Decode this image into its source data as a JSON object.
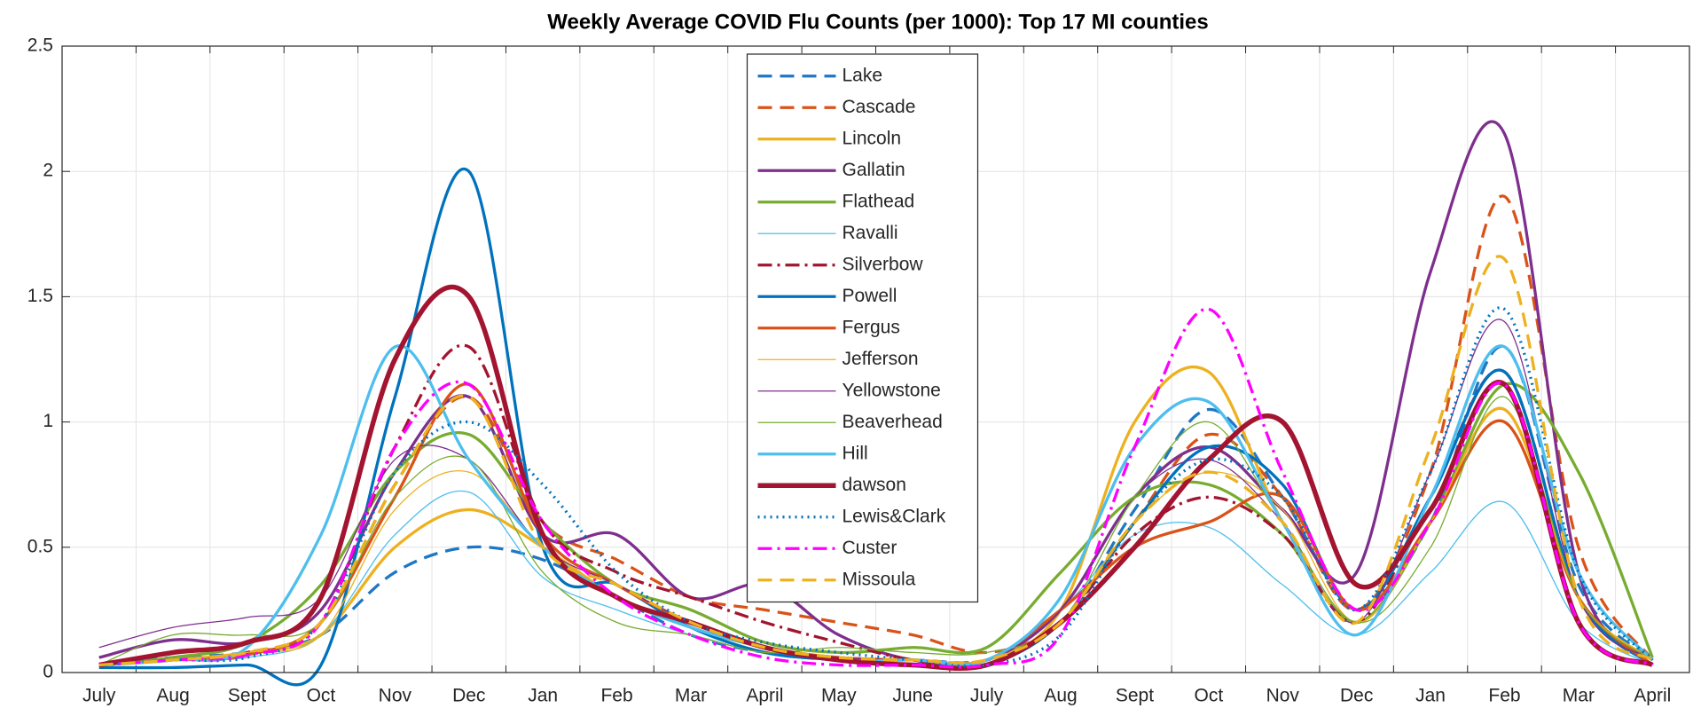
{
  "chart_data": {
    "type": "line",
    "title": "Weekly Average COVID Flu Counts (per 1000): Top 17 MI counties",
    "categories": [
      "July",
      "Aug",
      "Sept",
      "Oct",
      "Nov",
      "Dec",
      "Jan",
      "Feb",
      "Mar",
      "April",
      "May",
      "June",
      "July",
      "Aug",
      "Sept",
      "Oct",
      "Nov",
      "Dec",
      "Jan",
      "Feb",
      "Mar",
      "April"
    ],
    "ylim": [
      0,
      2.5
    ],
    "yticks": [
      0,
      0.5,
      1,
      1.5,
      2,
      2.5
    ],
    "grid": true,
    "legend": "top-center",
    "series": [
      {
        "name": "Lake",
        "color": "#1f77c4",
        "line_style": "dashed",
        "line_weight": "thick",
        "values": [
          0.03,
          0.06,
          0.08,
          0.15,
          0.4,
          0.5,
          0.45,
          0.3,
          0.15,
          0.08,
          0.05,
          0.05,
          0.05,
          0.2,
          0.65,
          1.05,
          0.7,
          0.25,
          0.6,
          1.3,
          0.35,
          0.05
        ]
      },
      {
        "name": "Cascade",
        "color": "#d95319",
        "line_style": "dashed",
        "line_weight": "thick",
        "values": [
          0.03,
          0.05,
          0.08,
          0.2,
          0.75,
          1.1,
          0.6,
          0.45,
          0.3,
          0.25,
          0.2,
          0.15,
          0.08,
          0.2,
          0.6,
          0.95,
          0.7,
          0.25,
          0.8,
          1.9,
          0.5,
          0.05
        ]
      },
      {
        "name": "Lincoln",
        "color": "#edb120",
        "line_style": "solid",
        "line_weight": "thick",
        "values": [
          0.03,
          0.05,
          0.08,
          0.15,
          0.5,
          0.65,
          0.5,
          0.3,
          0.18,
          0.1,
          0.06,
          0.05,
          0.05,
          0.25,
          1.0,
          1.2,
          0.6,
          0.2,
          0.6,
          1.05,
          0.3,
          0.05
        ]
      },
      {
        "name": "Gallatin",
        "color": "#7e2f8e",
        "line_style": "solid",
        "line_weight": "thick",
        "values": [
          0.06,
          0.13,
          0.12,
          0.25,
          0.8,
          1.1,
          0.55,
          0.55,
          0.3,
          0.35,
          0.15,
          0.05,
          0.05,
          0.25,
          0.7,
          0.9,
          0.65,
          0.4,
          1.6,
          2.15,
          0.4,
          0.05
        ]
      },
      {
        "name": "Flathead",
        "color": "#77ac30",
        "line_style": "solid",
        "line_weight": "thick",
        "values": [
          0.03,
          0.06,
          0.12,
          0.35,
          0.8,
          0.95,
          0.6,
          0.35,
          0.25,
          0.12,
          0.08,
          0.1,
          0.1,
          0.4,
          0.7,
          0.75,
          0.55,
          0.2,
          0.6,
          1.15,
          0.8,
          0.06
        ]
      },
      {
        "name": "Ravalli",
        "color": "#4dbeee",
        "line_style": "solid",
        "line_weight": "thin",
        "values": [
          0.03,
          0.05,
          0.06,
          0.15,
          0.55,
          0.72,
          0.38,
          0.25,
          0.15,
          0.08,
          0.06,
          0.05,
          0.05,
          0.25,
          0.55,
          0.58,
          0.35,
          0.15,
          0.4,
          0.68,
          0.2,
          0.03
        ]
      },
      {
        "name": "Silverbow",
        "color": "#a2142f",
        "line_style": "dashdot",
        "line_weight": "thick",
        "values": [
          0.03,
          0.05,
          0.08,
          0.2,
          0.9,
          1.3,
          0.6,
          0.4,
          0.3,
          0.2,
          0.12,
          0.05,
          0.03,
          0.2,
          0.55,
          0.7,
          0.55,
          0.2,
          0.7,
          1.2,
          0.3,
          0.03
        ]
      },
      {
        "name": "Powell",
        "color": "#0072bd",
        "line_style": "solid",
        "line_weight": "thick",
        "values": [
          0.02,
          0.02,
          0.03,
          0.03,
          1.1,
          2.0,
          0.5,
          0.35,
          0.18,
          0.08,
          0.05,
          0.03,
          0.03,
          0.2,
          0.6,
          0.9,
          0.75,
          0.25,
          0.7,
          1.2,
          0.3,
          0.03
        ]
      },
      {
        "name": "Fergus",
        "color": "#d95319",
        "line_style": "solid",
        "line_weight": "thick",
        "values": [
          0.03,
          0.05,
          0.07,
          0.2,
          0.7,
          1.15,
          0.55,
          0.35,
          0.2,
          0.1,
          0.06,
          0.05,
          0.05,
          0.25,
          0.5,
          0.6,
          0.7,
          0.25,
          0.6,
          1.0,
          0.3,
          0.03
        ]
      },
      {
        "name": "Jefferson",
        "color": "#edb120",
        "line_style": "solid",
        "line_weight": "thin",
        "values": [
          0.03,
          0.05,
          0.08,
          0.15,
          0.65,
          0.8,
          0.5,
          0.3,
          0.2,
          0.1,
          0.05,
          0.05,
          0.05,
          0.2,
          0.6,
          0.8,
          0.65,
          0.2,
          0.6,
          1.05,
          0.3,
          0.05
        ]
      },
      {
        "name": "Yellowstone",
        "color": "#7e2f8e",
        "line_style": "solid",
        "line_weight": "thin",
        "values": [
          0.1,
          0.18,
          0.22,
          0.3,
          0.85,
          0.85,
          0.5,
          0.35,
          0.2,
          0.1,
          0.06,
          0.05,
          0.05,
          0.25,
          0.7,
          0.85,
          0.6,
          0.2,
          0.8,
          1.4,
          0.3,
          0.05
        ]
      },
      {
        "name": "Beaverhead",
        "color": "#77ac30",
        "line_style": "solid",
        "line_weight": "thin",
        "values": [
          0.03,
          0.15,
          0.15,
          0.2,
          0.7,
          0.85,
          0.4,
          0.2,
          0.15,
          0.08,
          0.1,
          0.08,
          0.08,
          0.2,
          0.7,
          1.0,
          0.6,
          0.2,
          0.5,
          1.1,
          0.3,
          0.05
        ]
      },
      {
        "name": "Hill",
        "color": "#4dbeee",
        "line_style": "solid",
        "line_weight": "thick",
        "values": [
          0.03,
          0.05,
          0.1,
          0.55,
          1.3,
          0.85,
          0.5,
          0.3,
          0.18,
          0.1,
          0.05,
          0.05,
          0.05,
          0.3,
          0.9,
          1.08,
          0.6,
          0.15,
          0.7,
          1.3,
          0.4,
          0.05
        ]
      },
      {
        "name": "dawson",
        "color": "#a2142f",
        "line_style": "solid",
        "line_weight": "heavy",
        "values": [
          0.03,
          0.08,
          0.12,
          0.3,
          1.25,
          1.5,
          0.55,
          0.3,
          0.2,
          0.1,
          0.05,
          0.03,
          0.03,
          0.2,
          0.5,
          0.85,
          1.0,
          0.35,
          0.65,
          1.15,
          0.2,
          0.03
        ]
      },
      {
        "name": "Lewis&Clark",
        "color": "#0072bd",
        "line_style": "dotted",
        "line_weight": "thick",
        "values": [
          0.03,
          0.05,
          0.06,
          0.2,
          0.8,
          1.0,
          0.75,
          0.4,
          0.2,
          0.12,
          0.08,
          0.05,
          0.03,
          0.15,
          0.6,
          0.85,
          0.7,
          0.25,
          0.8,
          1.45,
          0.4,
          0.05
        ]
      },
      {
        "name": "Custer",
        "color": "#ff00ff",
        "line_style": "dashdot",
        "line_weight": "thick",
        "values": [
          0.03,
          0.05,
          0.07,
          0.2,
          0.9,
          1.15,
          0.6,
          0.3,
          0.15,
          0.06,
          0.03,
          0.03,
          0.03,
          0.15,
          0.9,
          1.45,
          0.8,
          0.25,
          0.6,
          1.15,
          0.2,
          0.03
        ]
      },
      {
        "name": "Missoula",
        "color": "#edb120",
        "line_style": "dashed",
        "line_weight": "thick",
        "values": [
          0.03,
          0.05,
          0.08,
          0.2,
          0.75,
          1.1,
          0.5,
          0.35,
          0.2,
          0.1,
          0.06,
          0.05,
          0.05,
          0.2,
          0.6,
          0.8,
          0.6,
          0.2,
          0.9,
          1.65,
          0.3,
          0.05
        ]
      }
    ]
  }
}
